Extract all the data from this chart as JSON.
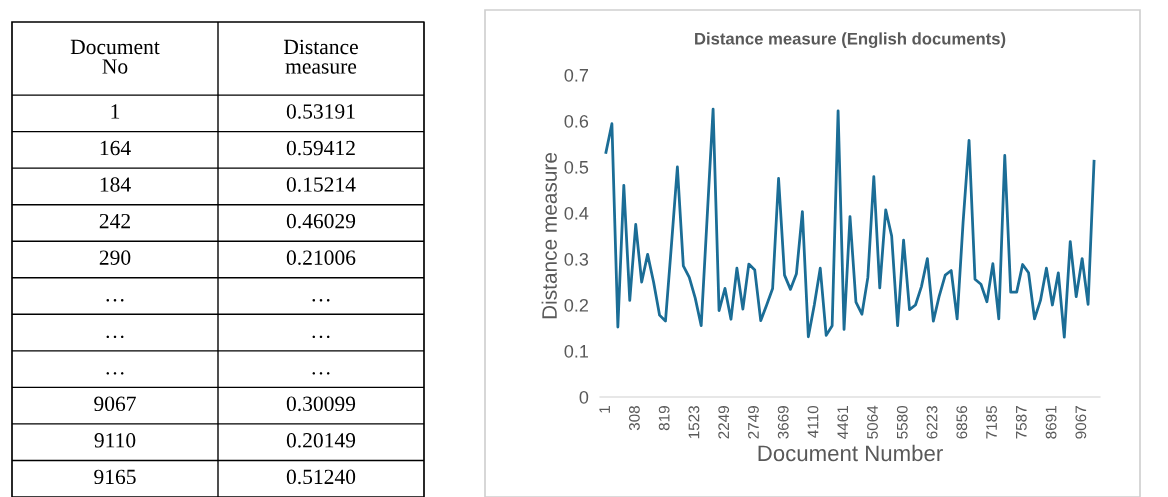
{
  "chart_data": [
    {
      "type": "other",
      "categories": [
        "Document\nNo",
        "Distance\nmeasure"
      ],
      "cell_labels": [
        [
          "1",
          "0.53191"
        ],
        [
          "164",
          "0.59412"
        ],
        [
          "184",
          "0.15214"
        ],
        [
          "242",
          "0.46029"
        ],
        [
          "290",
          "0.21006"
        ],
        [
          "…",
          "…"
        ],
        [
          "…",
          "…"
        ],
        [
          "…",
          "…"
        ],
        [
          "9067",
          "0.30099"
        ],
        [
          "9110",
          "0.20149"
        ],
        [
          "9165",
          "0.51240"
        ]
      ]
    },
    {
      "type": "line",
      "title": "Distance measure (English documents)",
      "xlabel": "Document Number",
      "ylabel": "Distance measure",
      "categories": [
        "1",
        null,
        null,
        null,
        null,
        "308",
        null,
        null,
        null,
        null,
        "819",
        null,
        null,
        null,
        null,
        "1523",
        null,
        null,
        null,
        null,
        "2249",
        null,
        null,
        null,
        null,
        "2749",
        null,
        null,
        null,
        null,
        "3669",
        null,
        null,
        null,
        null,
        "4110",
        null,
        null,
        null,
        null,
        "4461",
        null,
        null,
        null,
        null,
        "5064",
        null,
        null,
        null,
        null,
        "5580",
        null,
        null,
        null,
        null,
        "6223",
        null,
        null,
        null,
        null,
        "6856",
        null,
        null,
        null,
        null,
        "7185",
        null,
        null,
        null,
        null,
        "7587",
        null,
        null,
        null,
        null,
        "8691",
        null,
        null,
        null,
        null,
        "9067",
        null,
        null
      ],
      "series": [
        {
          "color": "#1b6d96",
          "values": [
            0.53191,
            0.59412,
            0.15214,
            0.46029,
            0.21006,
            0.375,
            0.25,
            0.31,
            0.25,
            0.178,
            0.165,
            0.33,
            0.5,
            0.285,
            0.26,
            0.215,
            0.155,
            0.39,
            0.626,
            0.188,
            0.236,
            0.169,
            0.28,
            0.191,
            0.289,
            0.276,
            0.166,
            0.2,
            0.236,
            0.475,
            0.265,
            0.234,
            0.268,
            0.403,
            0.131,
            0.2,
            0.28,
            0.134,
            0.155,
            0.622,
            0.147,
            0.392,
            0.206,
            0.18,
            0.26,
            0.479,
            0.237,
            0.407,
            0.35,
            0.155,
            0.341,
            0.19,
            0.2,
            0.24,
            0.301,
            0.165,
            0.22,
            0.265,
            0.275,
            0.17,
            0.38,
            0.558,
            0.256,
            0.245,
            0.207,
            0.29,
            0.17,
            0.525,
            0.228,
            0.228,
            0.288,
            0.27,
            0.17,
            0.21,
            0.28,
            0.2,
            0.27,
            0.13,
            0.338,
            0.218,
            0.30099,
            0.20149,
            0.5124
          ]
        }
      ],
      "ylim": [
        0,
        0.7
      ],
      "yticks": [
        0,
        0.1,
        0.2,
        0.3,
        0.4,
        0.5,
        0.6,
        0.7
      ],
      "grid": false,
      "marker": "none",
      "line_style": "solid"
    }
  ]
}
